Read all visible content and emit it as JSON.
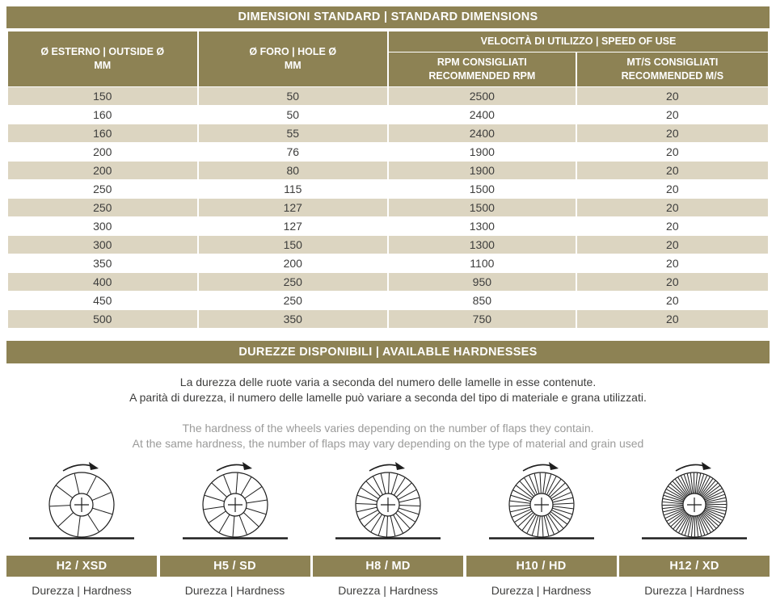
{
  "colors": {
    "olive": "#8d8254",
    "row_alt": "#dcd5c1",
    "text_dark": "#3d3d3c",
    "text_gray": "#9b9b9a"
  },
  "table": {
    "title": "DIMENSIONI STANDARD | STANDARD DIMENSIONS",
    "headers": {
      "outside": "Ø ESTERNO | OUTSIDE Ø\nMM",
      "hole": "Ø FORO | HOLE Ø\nMM",
      "speed_group": "VELOCITÀ DI UTILIZZO | SPEED OF USE",
      "rpm": "RPM CONSIGLIATI\nRECOMMENDED RPM",
      "ms": "MT/S CONSIGLIATI\nRECOMMENDED M/S"
    },
    "rows": [
      [
        "150",
        "50",
        "2500",
        "20"
      ],
      [
        "160",
        "50",
        "2400",
        "20"
      ],
      [
        "160",
        "55",
        "2400",
        "20"
      ],
      [
        "200",
        "76",
        "1900",
        "20"
      ],
      [
        "200",
        "80",
        "1900",
        "20"
      ],
      [
        "250",
        "115",
        "1500",
        "20"
      ],
      [
        "250",
        "127",
        "1500",
        "20"
      ],
      [
        "300",
        "127",
        "1300",
        "20"
      ],
      [
        "300",
        "150",
        "1300",
        "20"
      ],
      [
        "350",
        "200",
        "1100",
        "20"
      ],
      [
        "400",
        "250",
        "950",
        "20"
      ],
      [
        "450",
        "250",
        "850",
        "20"
      ],
      [
        "500",
        "350",
        "750",
        "20"
      ]
    ]
  },
  "hardness": {
    "title": "DUREZZE DISPONIBILI | AVAILABLE HARDNESSES",
    "desc_it": "La durezza delle ruote varia a seconda del numero delle lamelle in esse contenute.\nA parità di durezza, il numero delle lamelle può variare a seconda del tipo di materiale e grana utilizzati.",
    "desc_en": "The hardness of the wheels varies depending on the number of flaps they contain.\nAt the same hardness, the number of flaps may vary depending on the type of material and grain used",
    "wheels": [
      {
        "label": "H2 / XSD",
        "sublabel": "Durezza | Hardness",
        "flaps": 9
      },
      {
        "label": "H5 / SD",
        "sublabel": "Durezza | Hardness",
        "flaps": 14
      },
      {
        "label": "H8 / MD",
        "sublabel": "Durezza | Hardness",
        "flaps": 24
      },
      {
        "label": "H10 / HD",
        "sublabel": "Durezza | Hardness",
        "flaps": 36
      },
      {
        "label": "H12 / XD",
        "sublabel": "Durezza | Hardness",
        "flaps": 60
      }
    ]
  }
}
